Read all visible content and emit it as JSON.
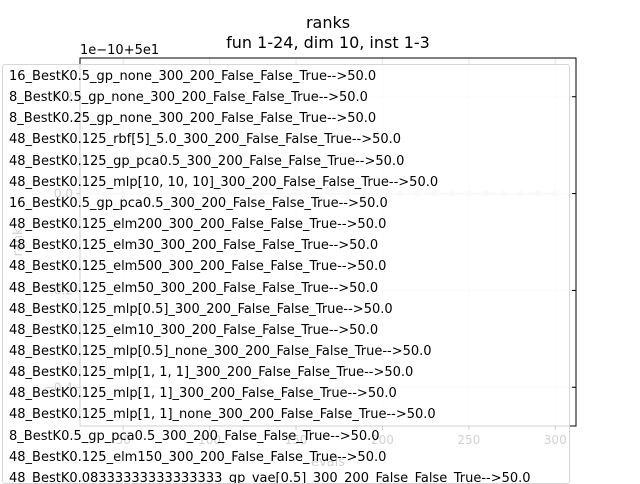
{
  "chart_data": {
    "type": "line",
    "title": "ranks",
    "subtitle": "fun 1-24, dim 10, inst 1-3",
    "xlabel": "evals",
    "ylabel": "rank",
    "offset_label": "1e−10+5e1",
    "xlim": [
      25,
      312
    ],
    "ylim": [
      -0.48,
      0.28
    ],
    "xticks": [
      50,
      100,
      150,
      200,
      250,
      300
    ],
    "yticks": [
      -0.4,
      -0.2,
      0.0,
      0.2
    ],
    "ytick_labels": [
      "−0.4",
      "−0.2",
      "0.0",
      "0.2"
    ],
    "series": [
      {
        "color": "#e7d4e8",
        "x": [
          30,
          40,
          50,
          60,
          70,
          80,
          90,
          100,
          110,
          120,
          130,
          140,
          150,
          160,
          170,
          180,
          190,
          200,
          210,
          220,
          230,
          240,
          250,
          260,
          270,
          280,
          290,
          300
        ],
        "y": [
          0,
          0,
          0,
          0,
          0,
          0,
          0,
          0,
          0,
          0,
          0,
          0,
          0,
          0,
          0,
          0,
          0,
          0,
          0,
          0,
          0,
          0,
          0,
          0,
          0,
          0,
          0,
          0
        ]
      }
    ],
    "legend_entries": [
      "16_BestK0.5_gp_none_300_200_False_False_True-->50.0",
      "8_BestK0.5_gp_none_300_200_False_False_True-->50.0",
      "8_BestK0.25_gp_none_300_200_False_False_True-->50.0",
      "48_BestK0.125_rbf[5]_5.0_300_200_False_False_True-->50.0",
      "48_BestK0.125_gp_pca0.5_300_200_False_False_True-->50.0",
      "48_BestK0.125_mlp[10, 10, 10]_300_200_False_False_True-->50.0",
      "16_BestK0.5_gp_pca0.5_300_200_False_False_True-->50.0",
      "48_BestK0.125_elm200_300_200_False_False_True-->50.0",
      "48_BestK0.125_elm30_300_200_False_False_True-->50.0",
      "48_BestK0.125_elm500_300_200_False_False_True-->50.0",
      "48_BestK0.125_elm50_300_200_False_False_True-->50.0",
      "48_BestK0.125_mlp[0.5]_300_200_False_False_True-->50.0",
      "48_BestK0.125_elm10_300_200_False_False_True-->50.0",
      "48_BestK0.125_mlp[0.5]_none_300_200_False_False_True-->50.0",
      "48_BestK0.125_mlp[1, 1, 1]_300_200_False_False_True-->50.0",
      "48_BestK0.125_mlp[1, 1]_300_200_False_False_True-->50.0",
      "48_BestK0.125_mlp[1, 1]_none_300_200_False_False_True-->50.0",
      "8_BestK0.5_gp_pca0.5_300_200_False_False_True-->50.0",
      "48_BestK0.125_elm150_300_200_False_False_True-->50.0",
      "48_BestK0.08333333333333333_gp_vae[0.5]_300_200_False_False_True-->50.0"
    ],
    "legend_placement": "upper-left",
    "grid": true
  }
}
